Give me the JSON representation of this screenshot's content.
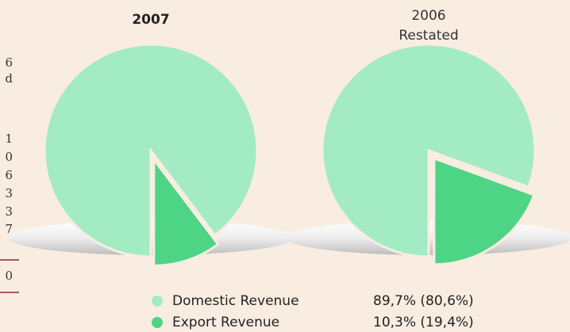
{
  "chart_data": [
    {
      "type": "pie",
      "title": "2007",
      "categories": [
        "Domestic Revenue",
        "Export Revenue"
      ],
      "values": [
        89.7,
        10.3
      ],
      "value_labels": [
        "89,7% (80,6%)",
        "10,3% (19,4%)"
      ],
      "colors": [
        "#a3ebc3",
        "#4dd585"
      ]
    },
    {
      "type": "pie",
      "title": "2006",
      "subtitle": "Restated",
      "categories": [
        "Domestic Revenue",
        "Export Revenue"
      ],
      "values": [
        80.6,
        19.4
      ],
      "colors": [
        "#a3ebc3",
        "#4dd585"
      ]
    }
  ],
  "left_table_fragments": [
    "6",
    "d",
    "1",
    "0",
    "6",
    "3",
    "3",
    "7",
    "0"
  ]
}
